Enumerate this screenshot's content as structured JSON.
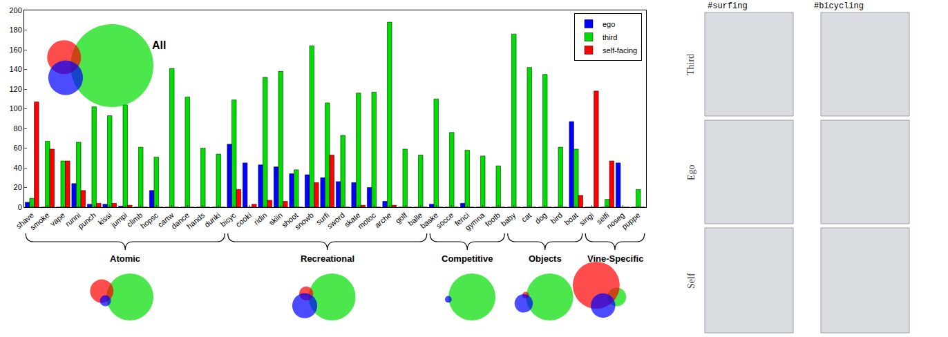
{
  "chart_data": {
    "type": "bar",
    "categories": [
      "shave",
      "smoke",
      "vape",
      "runni",
      "punch",
      "kissi",
      "jumpi",
      "climb",
      "hopsc",
      "cartw",
      "dance",
      "hands",
      "dunki",
      "bicyc",
      "cooki",
      "ridin",
      "skiin",
      "shoot",
      "snowb",
      "surfi",
      "sword",
      "skate",
      "motoc",
      "arche",
      "golf",
      "balle",
      "baske",
      "socce",
      "fenci",
      "gymna",
      "footb",
      "baby",
      "cat",
      "dog",
      "bird",
      "boat",
      "singi",
      "selfi",
      "noseg",
      "puppe"
    ],
    "series": [
      {
        "name": "ego",
        "color": "#0000ff",
        "values": [
          5,
          0,
          0,
          24,
          3,
          3,
          1,
          0,
          17,
          0,
          0,
          0,
          0,
          64,
          45,
          43,
          41,
          34,
          33,
          30,
          26,
          25,
          20,
          6,
          0,
          0,
          3,
          0,
          4,
          0,
          0,
          0,
          0,
          0,
          0,
          87,
          0,
          0,
          45,
          0
        ]
      },
      {
        "name": "third",
        "color": "#00dd00",
        "values": [
          9,
          67,
          47,
          66,
          102,
          93,
          104,
          61,
          51,
          141,
          112,
          60,
          54,
          109,
          0,
          132,
          138,
          38,
          164,
          106,
          73,
          116,
          117,
          188,
          59,
          53,
          110,
          76,
          58,
          52,
          42,
          176,
          142,
          135,
          61,
          59,
          0,
          8,
          0,
          18
        ]
      },
      {
        "name": "self-facing",
        "color": "#ff0000",
        "values": [
          107,
          59,
          47,
          17,
          4,
          4,
          2,
          0,
          0,
          0,
          0,
          0,
          0,
          18,
          3,
          7,
          6,
          0,
          25,
          53,
          0,
          2,
          0,
          2,
          0,
          0,
          0,
          0,
          0,
          0,
          0,
          0,
          0,
          0,
          0,
          12,
          118,
          47,
          0,
          0
        ]
      }
    ],
    "ylim": [
      0,
      200
    ],
    "yticks": [
      0,
      20,
      40,
      60,
      80,
      100,
      120,
      140,
      160,
      180,
      200
    ],
    "grid": false,
    "legend": "top-right",
    "venn_label": "All",
    "category_groups": [
      {
        "label": "Atomic",
        "first": "shave",
        "last": "dunki"
      },
      {
        "label": "Recreational",
        "first": "bicyc",
        "last": "balle"
      },
      {
        "label": "Competitive",
        "first": "baske",
        "last": "footb"
      },
      {
        "label": "Objects",
        "first": "baby",
        "last": "boat"
      },
      {
        "label": "Vine-Specific",
        "first": "singi",
        "last": "puppe"
      }
    ]
  },
  "image_panel": {
    "columns": [
      "#surfing",
      "#bicycling"
    ],
    "rows": [
      "Third",
      "Ego",
      "Self"
    ]
  }
}
